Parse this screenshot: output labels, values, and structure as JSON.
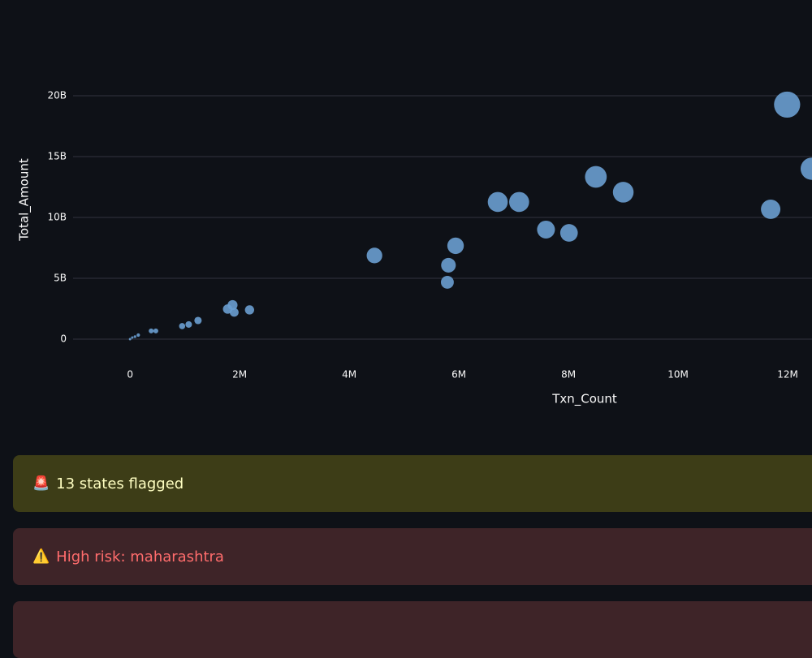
{
  "chart_data": {
    "type": "scatter",
    "x_label": "Txn_Count",
    "y_label": "Total_Amount",
    "color": "#6a9fd0",
    "grid": true,
    "series": [
      {
        "name": null,
        "color": "#6a9fd0",
        "x": [
          0,
          40000,
          90000,
          150000,
          385000,
          470000,
          950000,
          1070000,
          1240000,
          1780000,
          1870000,
          1900000,
          2180000,
          4460000,
          5790000,
          5810000,
          5940000,
          6710000,
          7100000,
          7590000,
          8010000,
          8500000,
          9000000,
          11690000,
          11990000,
          12440000
        ],
        "values": [
          0,
          130000000,
          200000000,
          330000000,
          670000000,
          670000000,
          1070000000,
          1200000000,
          1530000000,
          2470000000,
          2800000000,
          2200000000,
          2400000000,
          6870000000,
          4670000000,
          6070000000,
          7670000000,
          11270000000,
          11270000000,
          9000000000,
          8730000000,
          13330000000,
          12070000000,
          10670000000,
          19270000000,
          14000000000
        ]
      }
    ],
    "xlim": [
      -1040000,
      13200000
    ],
    "xticks": [
      0,
      {
        "value": 2000000,
        "label": "2M"
      },
      {
        "value": 4000000,
        "label": "4M"
      },
      {
        "value": 6000000,
        "label": "6M"
      },
      {
        "value": 8000000,
        "label": "8M"
      },
      {
        "value": 10000000,
        "label": "10M"
      },
      {
        "value": 12000000,
        "label": "12M"
      }
    ],
    "ylim": [
      -1470000000,
      21200000000
    ],
    "yticks": [
      0,
      {
        "value": 5000000000,
        "label": "5B"
      },
      {
        "value": 10000000000,
        "label": "10B"
      },
      {
        "value": 15000000000,
        "label": "15B"
      },
      {
        "value": 20000000000,
        "label": "20B"
      }
    ]
  },
  "alerts": [
    {
      "icon": "🚨",
      "text": "13 states flagged"
    },
    {
      "icon": "⚠️",
      "text": "High risk: maharashtra"
    }
  ]
}
